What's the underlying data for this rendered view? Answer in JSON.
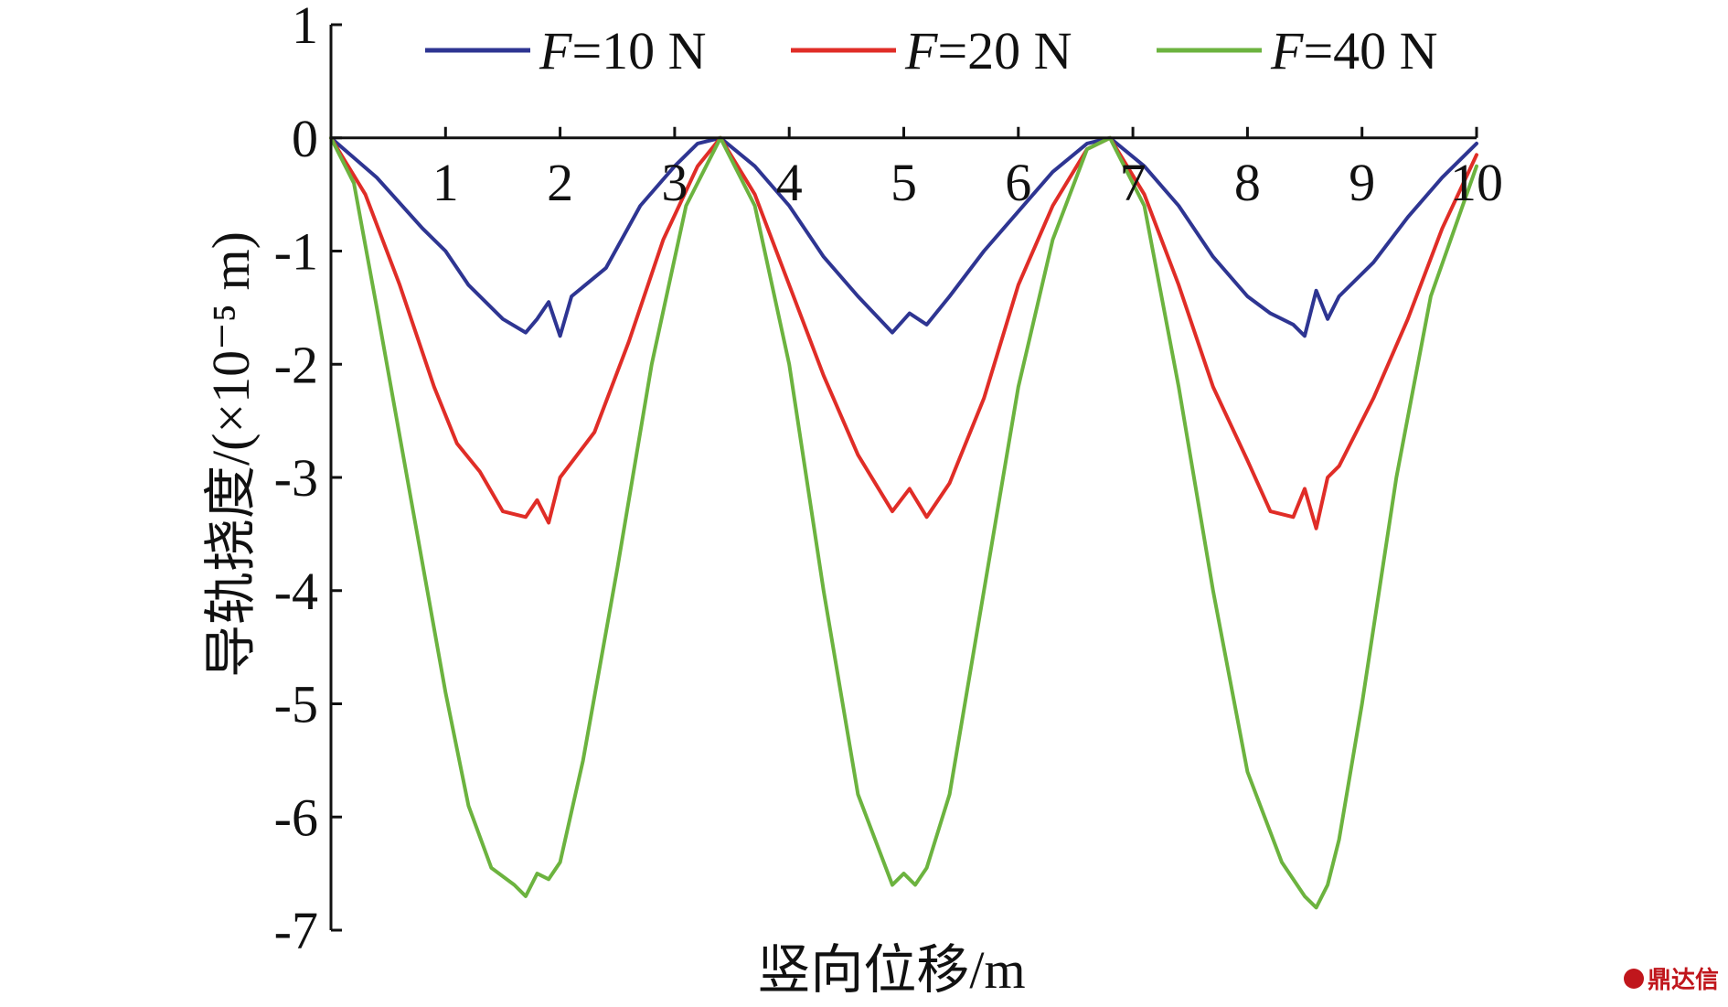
{
  "chart_data": {
    "type": "line",
    "title": "",
    "xlabel": "竖向位移/m",
    "ylabel": "导轨挠度/(×10⁻⁵ m)",
    "xlim": [
      0,
      10
    ],
    "ylim": [
      -7,
      1
    ],
    "xticks": [
      "1",
      "2",
      "3",
      "4",
      "5",
      "6",
      "7",
      "8",
      "9",
      "10"
    ],
    "yticks": [
      "1",
      "0",
      "-1",
      "-2",
      "-3",
      "-4",
      "-5",
      "-6",
      "-7"
    ],
    "grid": false,
    "legend_position": "top",
    "x_tick_values": [
      1,
      2,
      3,
      4,
      5,
      6,
      7,
      8,
      9,
      10
    ],
    "y_tick_values": [
      1,
      0,
      -1,
      -2,
      -3,
      -4,
      -5,
      -6,
      -7
    ],
    "series": [
      {
        "name": "F=10 N",
        "legend_var": "F",
        "legend_rest": "=10 N",
        "color": "#2e3592",
        "x": [
          0,
          0.4,
          0.8,
          1.0,
          1.2,
          1.5,
          1.7,
          1.8,
          1.9,
          2.0,
          2.1,
          2.4,
          2.7,
          3.0,
          3.2,
          3.4,
          3.7,
          4.0,
          4.3,
          4.6,
          4.9,
          5.05,
          5.2,
          5.4,
          5.7,
          6.0,
          6.3,
          6.6,
          6.8,
          7.1,
          7.4,
          7.7,
          8.0,
          8.2,
          8.4,
          8.5,
          8.6,
          8.7,
          8.8,
          9.1,
          9.4,
          9.7,
          10.0
        ],
        "y": [
          0,
          -0.35,
          -0.8,
          -1.0,
          -1.3,
          -1.6,
          -1.72,
          -1.6,
          -1.45,
          -1.75,
          -1.4,
          -1.15,
          -0.6,
          -0.25,
          -0.05,
          0,
          -0.25,
          -0.6,
          -1.05,
          -1.4,
          -1.72,
          -1.55,
          -1.65,
          -1.4,
          -1.0,
          -0.65,
          -0.3,
          -0.05,
          0,
          -0.25,
          -0.6,
          -1.05,
          -1.4,
          -1.55,
          -1.65,
          -1.75,
          -1.35,
          -1.6,
          -1.4,
          -1.1,
          -0.7,
          -0.35,
          -0.05
        ]
      },
      {
        "name": "F=20 N",
        "legend_var": "F",
        "legend_rest": "=20 N",
        "color": "#e02d27",
        "x": [
          0,
          0.3,
          0.6,
          0.9,
          1.1,
          1.3,
          1.5,
          1.7,
          1.8,
          1.9,
          2.0,
          2.3,
          2.6,
          2.9,
          3.2,
          3.4,
          3.7,
          4.0,
          4.3,
          4.6,
          4.9,
          5.05,
          5.2,
          5.4,
          5.7,
          6.0,
          6.3,
          6.6,
          6.8,
          7.1,
          7.4,
          7.7,
          8.0,
          8.2,
          8.4,
          8.5,
          8.6,
          8.7,
          8.8,
          9.1,
          9.4,
          9.7,
          10.0
        ],
        "y": [
          0,
          -0.5,
          -1.3,
          -2.2,
          -2.7,
          -2.95,
          -3.3,
          -3.35,
          -3.2,
          -3.4,
          -3.0,
          -2.6,
          -1.8,
          -0.9,
          -0.25,
          0,
          -0.5,
          -1.3,
          -2.1,
          -2.8,
          -3.3,
          -3.1,
          -3.35,
          -3.05,
          -2.3,
          -1.3,
          -0.6,
          -0.1,
          0,
          -0.5,
          -1.3,
          -2.2,
          -2.85,
          -3.3,
          -3.35,
          -3.1,
          -3.45,
          -3.0,
          -2.9,
          -2.3,
          -1.6,
          -0.8,
          -0.15
        ]
      },
      {
        "name": "F=40 N",
        "legend_var": "F",
        "legend_rest": "=40 N",
        "color": "#6cb33f",
        "x": [
          0,
          0.2,
          0.4,
          0.7,
          1.0,
          1.2,
          1.4,
          1.6,
          1.7,
          1.8,
          1.9,
          2.0,
          2.2,
          2.5,
          2.8,
          3.1,
          3.4,
          3.7,
          4.0,
          4.3,
          4.6,
          4.9,
          5.0,
          5.1,
          5.2,
          5.4,
          5.7,
          6.0,
          6.3,
          6.6,
          6.8,
          7.1,
          7.4,
          7.7,
          8.0,
          8.3,
          8.5,
          8.6,
          8.7,
          8.8,
          9.0,
          9.3,
          9.6,
          10.0
        ],
        "y": [
          0,
          -0.4,
          -1.5,
          -3.2,
          -4.9,
          -5.9,
          -6.45,
          -6.6,
          -6.7,
          -6.5,
          -6.55,
          -6.4,
          -5.5,
          -3.8,
          -2.0,
          -0.6,
          0,
          -0.6,
          -2.0,
          -4.0,
          -5.8,
          -6.6,
          -6.5,
          -6.6,
          -6.45,
          -5.8,
          -4.0,
          -2.2,
          -0.9,
          -0.1,
          0,
          -0.6,
          -2.2,
          -4.0,
          -5.6,
          -6.4,
          -6.7,
          -6.8,
          -6.6,
          -6.2,
          -5.0,
          -3.0,
          -1.4,
          -0.25
        ]
      }
    ]
  },
  "watermark": {
    "text": "鼎达信"
  }
}
